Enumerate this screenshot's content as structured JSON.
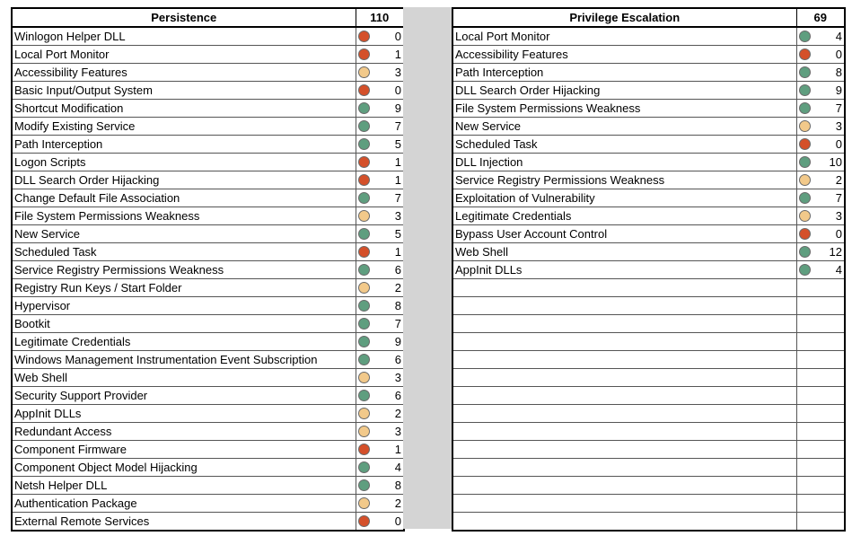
{
  "colors": {
    "green": "#5f9e7f",
    "red": "#d4502a",
    "yellow": "#f2c98a",
    "gap": "#d4d4d4"
  },
  "persistence": {
    "title": "Persistence",
    "total": "110",
    "rows": [
      {
        "name": "Winlogon Helper DLL",
        "status": "red",
        "count": "0"
      },
      {
        "name": "Local Port Monitor",
        "status": "red",
        "count": "1"
      },
      {
        "name": "Accessibility Features",
        "status": "yellow",
        "count": "3"
      },
      {
        "name": "Basic Input/Output System",
        "status": "red",
        "count": "0"
      },
      {
        "name": "Shortcut Modification",
        "status": "green",
        "count": "9"
      },
      {
        "name": "Modify Existing Service",
        "status": "green",
        "count": "7"
      },
      {
        "name": "Path Interception",
        "status": "green",
        "count": "5"
      },
      {
        "name": "Logon Scripts",
        "status": "red",
        "count": "1"
      },
      {
        "name": "DLL Search Order Hijacking",
        "status": "red",
        "count": "1"
      },
      {
        "name": "Change Default File Association",
        "status": "green",
        "count": "7"
      },
      {
        "name": "File System Permissions Weakness",
        "status": "yellow",
        "count": "3"
      },
      {
        "name": "New Service",
        "status": "green",
        "count": "5"
      },
      {
        "name": "Scheduled Task",
        "status": "red",
        "count": "1"
      },
      {
        "name": "Service Registry Permissions Weakness",
        "status": "green",
        "count": "6"
      },
      {
        "name": "Registry Run Keys / Start Folder",
        "status": "yellow",
        "count": "2"
      },
      {
        "name": "Hypervisor",
        "status": "green",
        "count": "8"
      },
      {
        "name": "Bootkit",
        "status": "green",
        "count": "7"
      },
      {
        "name": "Legitimate Credentials",
        "status": "green",
        "count": "9"
      },
      {
        "name": "Windows Management Instrumentation Event Subscription",
        "status": "green",
        "count": "6"
      },
      {
        "name": "Web Shell",
        "status": "yellow",
        "count": "3"
      },
      {
        "name": "Security Support Provider",
        "status": "green",
        "count": "6"
      },
      {
        "name": "AppInit DLLs",
        "status": "yellow",
        "count": "2"
      },
      {
        "name": "Redundant Access",
        "status": "yellow",
        "count": "3"
      },
      {
        "name": "Component Firmware",
        "status": "red",
        "count": "1"
      },
      {
        "name": "Component Object Model Hijacking",
        "status": "green",
        "count": "4"
      },
      {
        "name": "Netsh Helper DLL",
        "status": "green",
        "count": "8"
      },
      {
        "name": "Authentication Package",
        "status": "yellow",
        "count": "2"
      },
      {
        "name": "External Remote Services",
        "status": "red",
        "count": "0"
      }
    ]
  },
  "privilege_escalation": {
    "title": "Privilege Escalation",
    "total": "69",
    "rows": [
      {
        "name": "Local Port Monitor",
        "status": "green",
        "count": "4"
      },
      {
        "name": "Accessibility Features",
        "status": "red",
        "count": "0"
      },
      {
        "name": "Path Interception",
        "status": "green",
        "count": "8"
      },
      {
        "name": "DLL Search Order Hijacking",
        "status": "green",
        "count": "9"
      },
      {
        "name": "File System Permissions Weakness",
        "status": "green",
        "count": "7"
      },
      {
        "name": "New Service",
        "status": "yellow",
        "count": "3"
      },
      {
        "name": "Scheduled Task",
        "status": "red",
        "count": "0"
      },
      {
        "name": "DLL Injection",
        "status": "green",
        "count": "10"
      },
      {
        "name": "Service Registry Permissions Weakness",
        "status": "yellow",
        "count": "2"
      },
      {
        "name": "Exploitation of Vulnerability",
        "status": "green",
        "count": "7"
      },
      {
        "name": "Legitimate Credentials",
        "status": "yellow",
        "count": "3"
      },
      {
        "name": "Bypass User Account Control",
        "status": "red",
        "count": "0"
      },
      {
        "name": "Web Shell",
        "status": "green",
        "count": "12"
      },
      {
        "name": "AppInit DLLs",
        "status": "green",
        "count": "4"
      }
    ],
    "empty_rows": 14
  }
}
